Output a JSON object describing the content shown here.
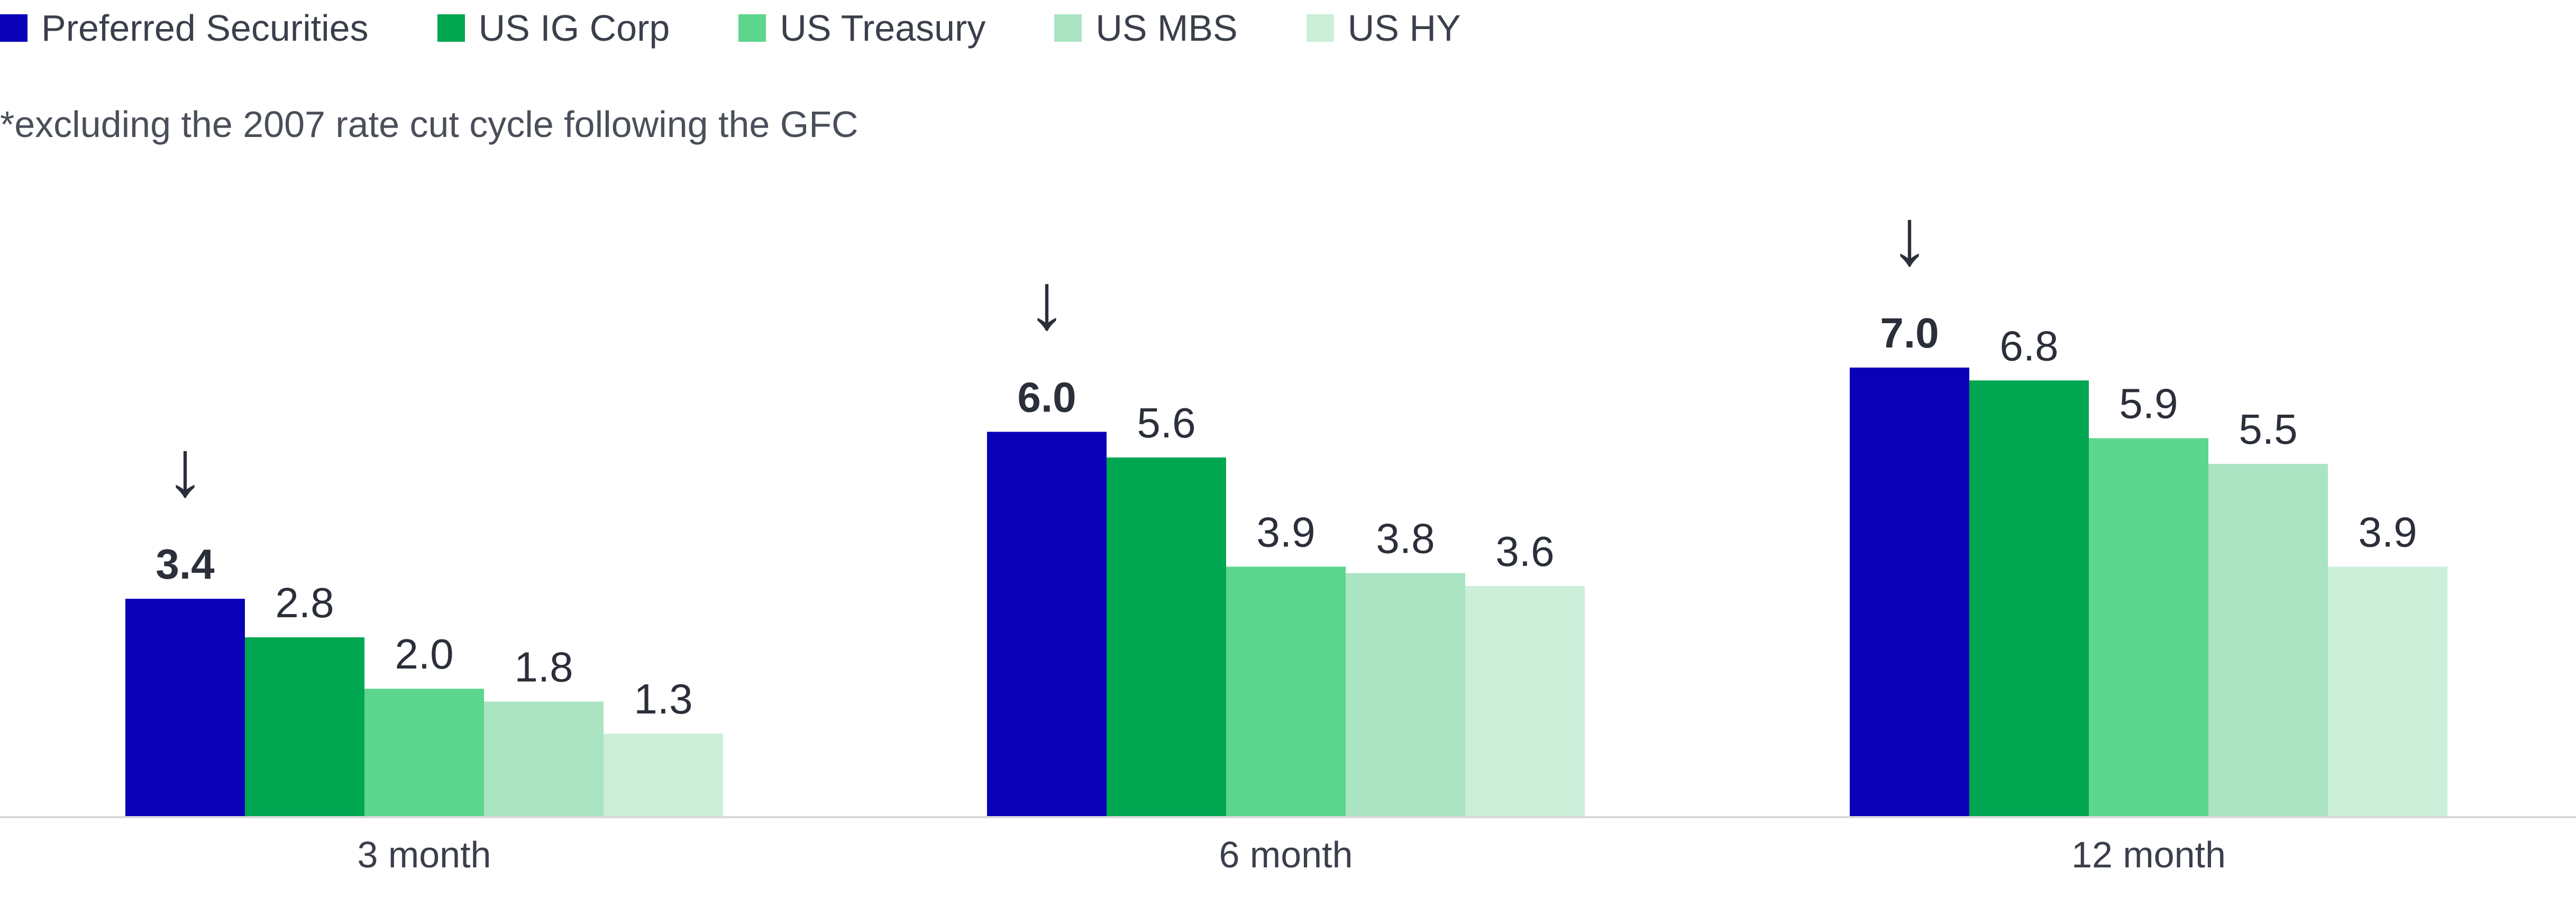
{
  "legend": [
    {
      "label": "Preferred Securities",
      "color": "#0a00b8"
    },
    {
      "label": "US IG Corp",
      "color": "#00a650"
    },
    {
      "label": "US Treasury",
      "color": "#5cd68d"
    },
    {
      "label": "US MBS",
      "color": "#aae4c3"
    },
    {
      "label": "US HY",
      "color": "#cbeed9"
    }
  ],
  "footnote": "*excluding the 2007 rate cut cycle following the GFC",
  "chart_data": {
    "type": "bar",
    "categories": [
      "3 month",
      "6 month",
      "12 month"
    ],
    "series": [
      {
        "name": "Preferred Securities",
        "color": "#0a00b8",
        "values": [
          3.4,
          6.0,
          7.0
        ],
        "highlight": true
      },
      {
        "name": "US IG Corp",
        "color": "#00a650",
        "values": [
          2.8,
          5.6,
          6.8
        ]
      },
      {
        "name": "US Treasury",
        "color": "#5cd68d",
        "values": [
          2.0,
          3.9,
          5.9
        ]
      },
      {
        "name": "US MBS",
        "color": "#aae4c3",
        "values": [
          1.8,
          3.8,
          5.5
        ]
      },
      {
        "name": "US HY",
        "color": "#cbeed9",
        "values": [
          1.3,
          3.6,
          3.9
        ]
      }
    ],
    "data_labels": [
      [
        "3.4",
        "2.8",
        "2.0",
        "1.8",
        "1.3"
      ],
      [
        "6.0",
        "5.6",
        "3.9",
        "3.8",
        "3.6"
      ],
      [
        "7.0",
        "6.8",
        "5.9",
        "5.5",
        "3.9"
      ]
    ],
    "highlight_marker": "↓",
    "ylim": [
      0,
      7.0
    ],
    "legend_position": "top-left",
    "grid": false
  }
}
